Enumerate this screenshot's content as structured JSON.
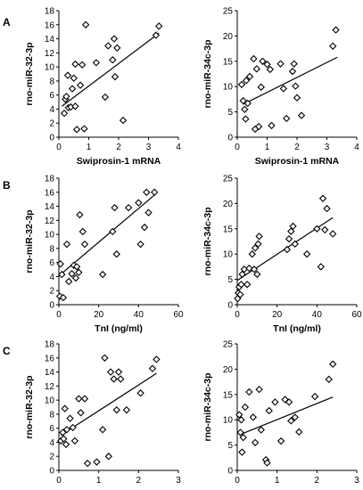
{
  "figure": {
    "panel_labels": [
      "A",
      "B",
      "C"
    ]
  },
  "chart_data": [
    {
      "type": "scatter",
      "xlabel": "Swiprosin-1 mRNA",
      "ylabel": "rno-miR-32-3p",
      "xlim": [
        0,
        4
      ],
      "ylim": [
        0,
        18
      ],
      "xticks": [
        "0",
        "1",
        "2",
        "3",
        "4"
      ],
      "yticks": [
        "0",
        "2",
        "4",
        "6",
        "8",
        "10",
        "12",
        "14",
        "16",
        "18"
      ],
      "points": [
        [
          0.18,
          3.4
        ],
        [
          0.22,
          5.4
        ],
        [
          0.25,
          5.8
        ],
        [
          0.3,
          8.8
        ],
        [
          0.32,
          4.2
        ],
        [
          0.4,
          4.3
        ],
        [
          0.45,
          6.9
        ],
        [
          0.5,
          8.4
        ],
        [
          0.55,
          10.4
        ],
        [
          0.55,
          4.4
        ],
        [
          0.6,
          1.1
        ],
        [
          0.72,
          7.4
        ],
        [
          0.78,
          10.3
        ],
        [
          0.85,
          1.2
        ],
        [
          0.9,
          16.0
        ],
        [
          1.25,
          10.6
        ],
        [
          1.55,
          5.7
        ],
        [
          1.65,
          13.0
        ],
        [
          1.8,
          11.0
        ],
        [
          1.85,
          14.0
        ],
        [
          1.88,
          8.6
        ],
        [
          1.95,
          12.7
        ],
        [
          2.15,
          2.4
        ],
        [
          3.25,
          14.5
        ],
        [
          3.35,
          15.8
        ]
      ],
      "trendline": [
        [
          0.1,
          4.4
        ],
        [
          3.35,
          14.8
        ]
      ],
      "grid": false
    },
    {
      "type": "scatter",
      "xlabel": "Swiprosin-1 mRNA",
      "ylabel": "rno-miR-34c-3p",
      "xlim": [
        0,
        4
      ],
      "ylim": [
        0,
        25
      ],
      "xticks": [
        "0",
        "1",
        "2",
        "3",
        "4"
      ],
      "yticks": [
        "0",
        "5",
        "10",
        "15",
        "20",
        "25"
      ],
      "points": [
        [
          0.15,
          10.4
        ],
        [
          0.2,
          7.2
        ],
        [
          0.25,
          5.5
        ],
        [
          0.28,
          3.6
        ],
        [
          0.3,
          11.2
        ],
        [
          0.35,
          6.7
        ],
        [
          0.42,
          12.0
        ],
        [
          0.55,
          15.5
        ],
        [
          0.6,
          1.6
        ],
        [
          0.65,
          13.5
        ],
        [
          0.72,
          2.1
        ],
        [
          0.8,
          9.9
        ],
        [
          0.85,
          15.0
        ],
        [
          1.0,
          14.4
        ],
        [
          1.1,
          13.4
        ],
        [
          1.15,
          2.3
        ],
        [
          1.45,
          14.5
        ],
        [
          1.55,
          9.6
        ],
        [
          1.65,
          3.7
        ],
        [
          1.85,
          13.0
        ],
        [
          1.9,
          14.5
        ],
        [
          1.95,
          10.1
        ],
        [
          2.0,
          7.8
        ],
        [
          2.15,
          4.3
        ],
        [
          3.2,
          18.0
        ],
        [
          3.3,
          21.2
        ]
      ],
      "trendline": [
        [
          0.2,
          6.5
        ],
        [
          3.35,
          15.8
        ]
      ],
      "grid": false
    },
    {
      "type": "scatter",
      "xlabel": "TnI (ng/ml)",
      "ylabel": "rno-miR-32-3p",
      "xlim": [
        0,
        60
      ],
      "ylim": [
        0,
        18
      ],
      "xticks": [
        "0",
        "20",
        "40",
        "60"
      ],
      "yticks": [
        "0",
        "2",
        "4",
        "6",
        "8",
        "10",
        "12",
        "14",
        "16",
        "18"
      ],
      "points": [
        [
          0.5,
          1.2
        ],
        [
          0.8,
          5.8
        ],
        [
          1.5,
          4.3
        ],
        [
          2.2,
          1.0
        ],
        [
          4.0,
          8.6
        ],
        [
          5.0,
          3.3
        ],
        [
          6.5,
          4.4
        ],
        [
          7.5,
          5.6
        ],
        [
          8.5,
          3.8
        ],
        [
          9.0,
          5.4
        ],
        [
          10.0,
          4.6
        ],
        [
          10.5,
          12.8
        ],
        [
          12.0,
          10.4
        ],
        [
          13.0,
          8.6
        ],
        [
          22.0,
          4.3
        ],
        [
          27.0,
          10.4
        ],
        [
          28.0,
          13.8
        ],
        [
          29.0,
          7.2
        ],
        [
          35.0,
          13.8
        ],
        [
          40.0,
          14.5
        ],
        [
          41.0,
          8.6
        ],
        [
          43.0,
          11.0
        ],
        [
          44.0,
          16.0
        ],
        [
          45.0,
          13.1
        ],
        [
          48.0,
          16.0
        ]
      ],
      "trendline": [
        [
          0,
          4.1
        ],
        [
          48,
          15.6
        ]
      ],
      "grid": false
    },
    {
      "type": "scatter",
      "xlabel": "TnI (ng/ml)",
      "ylabel": "rno-miR-34c-3p",
      "xlim": [
        0,
        60
      ],
      "ylim": [
        0,
        25
      ],
      "xticks": [
        "0",
        "20",
        "40",
        "60"
      ],
      "yticks": [
        "0",
        "5",
        "10",
        "15",
        "20",
        "25"
      ],
      "points": [
        [
          0.2,
          1.2
        ],
        [
          0.5,
          2.3
        ],
        [
          1.0,
          3.5
        ],
        [
          1.5,
          2.0
        ],
        [
          2.0,
          4.0
        ],
        [
          2.5,
          6.0
        ],
        [
          3.5,
          7.0
        ],
        [
          5.0,
          4.0
        ],
        [
          6.0,
          7.2
        ],
        [
          7.5,
          10.0
        ],
        [
          8.5,
          7.0
        ],
        [
          9.0,
          11.2
        ],
        [
          10.0,
          6.0
        ],
        [
          10.5,
          12.0
        ],
        [
          11.0,
          13.5
        ],
        [
          25.0,
          10.9
        ],
        [
          26.0,
          13.0
        ],
        [
          27.0,
          14.5
        ],
        [
          28.0,
          15.5
        ],
        [
          29.0,
          12.0
        ],
        [
          35.0,
          10.0
        ],
        [
          40.0,
          15.0
        ],
        [
          42.0,
          7.5
        ],
        [
          43.0,
          21.0
        ],
        [
          44.0,
          14.8
        ],
        [
          45.0,
          19.0
        ],
        [
          48.0,
          14.0
        ]
      ],
      "trendline": [
        [
          0,
          4.8
        ],
        [
          48,
          17.2
        ]
      ],
      "grid": false
    },
    {
      "type": "scatter",
      "xlabel": "Arrestin-2 mRNA",
      "ylabel": "rno-miR-32-3p",
      "xlim": [
        0,
        3
      ],
      "ylim": [
        0,
        18
      ],
      "xticks": [
        "0",
        "1",
        "2",
        "3"
      ],
      "yticks": [
        "0",
        "2",
        "4",
        "6",
        "8",
        "10",
        "12",
        "14",
        "16",
        "18"
      ],
      "points": [
        [
          0.05,
          4.2
        ],
        [
          0.1,
          5.4
        ],
        [
          0.12,
          4.5
        ],
        [
          0.15,
          8.8
        ],
        [
          0.18,
          3.7
        ],
        [
          0.2,
          5.8
        ],
        [
          0.28,
          7.4
        ],
        [
          0.35,
          6.1
        ],
        [
          0.4,
          4.2
        ],
        [
          0.5,
          10.2
        ],
        [
          0.55,
          8.2
        ],
        [
          0.65,
          10.2
        ],
        [
          0.72,
          1.0
        ],
        [
          0.95,
          1.2
        ],
        [
          1.1,
          5.8
        ],
        [
          1.15,
          16.0
        ],
        [
          1.25,
          2.0
        ],
        [
          1.3,
          14.0
        ],
        [
          1.38,
          13.0
        ],
        [
          1.45,
          8.6
        ],
        [
          1.5,
          14.0
        ],
        [
          1.55,
          13.0
        ],
        [
          1.7,
          8.6
        ],
        [
          2.05,
          11.0
        ],
        [
          2.35,
          14.5
        ],
        [
          2.45,
          15.8
        ]
      ],
      "trendline": [
        [
          0.05,
          5.0
        ],
        [
          2.45,
          13.8
        ]
      ],
      "grid": false
    },
    {
      "type": "scatter",
      "xlabel": "Arrestin-2 mRNA",
      "ylabel": "rno-miR-34c-3p",
      "xlim": [
        0,
        3
      ],
      "ylim": [
        0,
        25
      ],
      "xticks": [
        "0",
        "1",
        "2",
        "3"
      ],
      "yticks": [
        "0",
        "5",
        "10",
        "15",
        "20",
        "25"
      ],
      "points": [
        [
          0.05,
          11.0
        ],
        [
          0.08,
          7.5
        ],
        [
          0.1,
          10.0
        ],
        [
          0.12,
          3.6
        ],
        [
          0.15,
          6.5
        ],
        [
          0.2,
          12.5
        ],
        [
          0.3,
          15.5
        ],
        [
          0.4,
          10.5
        ],
        [
          0.45,
          5.5
        ],
        [
          0.55,
          16.0
        ],
        [
          0.6,
          8.0
        ],
        [
          0.72,
          2.1
        ],
        [
          0.75,
          1.5
        ],
        [
          0.8,
          11.8
        ],
        [
          0.95,
          13.5
        ],
        [
          1.1,
          5.8
        ],
        [
          1.2,
          14.0
        ],
        [
          1.3,
          13.5
        ],
        [
          1.35,
          9.8
        ],
        [
          1.45,
          10.5
        ],
        [
          1.55,
          7.6
        ],
        [
          1.95,
          14.6
        ],
        [
          2.3,
          18.0
        ],
        [
          2.4,
          21.0
        ]
      ],
      "trendline": [
        [
          0.05,
          7.0
        ],
        [
          2.4,
          14.5
        ]
      ],
      "grid": false
    }
  ]
}
